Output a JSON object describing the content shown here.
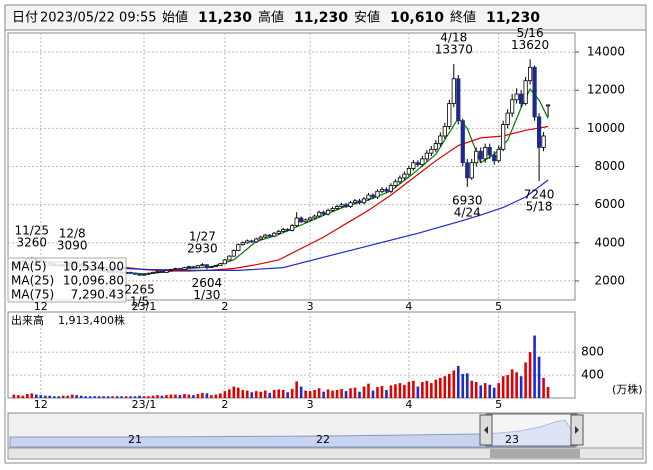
{
  "header": {
    "items": [
      {
        "label": "日付",
        "value": "2023/05/22 09:55",
        "color": "#000000"
      },
      {
        "label": "始値",
        "value": "11,230",
        "color": "#000000"
      },
      {
        "label": "高値",
        "value": "11,230",
        "color": "#e00000"
      },
      {
        "label": "安値",
        "value": "10,610",
        "color": "#008000"
      },
      {
        "label": "終値",
        "value": "11,230",
        "color": "#000000"
      }
    ]
  },
  "chart_data": {
    "type": "candlestick",
    "xlim": [
      -1.3,
      125
    ],
    "xticks": [
      {
        "value": 6,
        "label": "12"
      },
      {
        "value": 29,
        "label": "23/1"
      },
      {
        "value": 47,
        "label": "2"
      },
      {
        "value": 66,
        "label": "3"
      },
      {
        "value": 88,
        "label": "4"
      },
      {
        "value": 108,
        "label": "5"
      }
    ],
    "ylim": [
      1000,
      15000
    ],
    "yticks": [
      2000,
      4000,
      6000,
      8000,
      10000,
      12000,
      14000
    ],
    "grid": true,
    "up_color": "#ffffff",
    "down_color": "#1c2a8c",
    "open": [
      2850,
      2900,
      3000,
      3050,
      3150,
      3200,
      3100,
      3000,
      2950,
      2900,
      2850,
      2800,
      2850,
      2900,
      3000,
      2900,
      2800,
      2700,
      2650,
      2600,
      2550,
      2500,
      2450,
      2500,
      2450,
      2400,
      2450,
      2400,
      2350,
      2300,
      2350,
      2400,
      2450,
      2500,
      2450,
      2550,
      2600,
      2650,
      2600,
      2700,
      2750,
      2700,
      2800,
      2850,
      2700,
      2750,
      2800,
      2900,
      3100,
      3300,
      3600,
      3900,
      4000,
      4100,
      4050,
      4200,
      4300,
      4400,
      4350,
      4500,
      4600,
      4700,
      4650,
      4900,
      5300,
      5100,
      5200,
      5300,
      5400,
      5600,
      5500,
      5700,
      5800,
      5900,
      6000,
      5900,
      6100,
      6200,
      6100,
      6300,
      6500,
      6400,
      6700,
      6800,
      6700,
      7000,
      7200,
      7400,
      7600,
      7900,
      8200,
      8100,
      8400,
      8700,
      8900,
      9200,
      9600,
      10100,
      11300,
      12600,
      10400,
      8200,
      7400,
      8200,
      8800,
      8400,
      9000,
      8600,
      8300,
      8900,
      10200,
      10800,
      11500,
      11800,
      11300,
      12500,
      13200,
      10600,
      9000,
      11230
    ],
    "high": [
      2950,
      3040,
      3100,
      3190,
      3260,
      3230,
      3130,
      3040,
      2980,
      2930,
      2880,
      2890,
      2940,
      3090,
      3030,
      2930,
      2830,
      2740,
      2690,
      2630,
      2580,
      2530,
      2540,
      2530,
      2480,
      2490,
      2480,
      2430,
      2380,
      2390,
      2440,
      2490,
      2540,
      2530,
      2590,
      2640,
      2690,
      2680,
      2740,
      2790,
      2780,
      2840,
      2930,
      2880,
      2790,
      2840,
      2950,
      3150,
      3350,
      3650,
      3960,
      4070,
      4170,
      4160,
      4270,
      4370,
      4470,
      4460,
      4570,
      4680,
      4780,
      4770,
      4980,
      5600,
      5380,
      5280,
      5380,
      5480,
      5690,
      5680,
      5790,
      5890,
      5990,
      6100,
      6090,
      6200,
      6300,
      6300,
      6400,
      6610,
      6600,
      6810,
      6920,
      6910,
      7120,
      7330,
      7530,
      7740,
      8040,
      8350,
      8330,
      8550,
      8860,
      9070,
      9380,
      9790,
      10300,
      11500,
      13370,
      12800,
      10500,
      8400,
      8400,
      9000,
      9000,
      9200,
      9200,
      8800,
      9100,
      10400,
      11000,
      11800,
      12100,
      12000,
      12700,
      13620,
      13300,
      10800,
      9800,
      11230
    ],
    "low": [
      2820,
      2880,
      2970,
      3020,
      3120,
      3070,
      2970,
      2920,
      2870,
      2820,
      2770,
      2780,
      2830,
      2880,
      2870,
      2770,
      2670,
      2620,
      2570,
      2520,
      2470,
      2420,
      2430,
      2420,
      2370,
      2380,
      2370,
      2320,
      2265,
      2280,
      2330,
      2380,
      2430,
      2420,
      2430,
      2530,
      2580,
      2570,
      2580,
      2680,
      2670,
      2680,
      2780,
      2604,
      2680,
      2730,
      2780,
      2880,
      3070,
      3270,
      3560,
      3850,
      3950,
      3990,
      4000,
      4150,
      4250,
      4290,
      4300,
      4440,
      4540,
      4580,
      4600,
      4850,
      5040,
      5030,
      5130,
      5230,
      5330,
      5420,
      5430,
      5620,
      5720,
      5820,
      5820,
      5820,
      6020,
      6010,
      6010,
      6210,
      6300,
      6300,
      6600,
      6590,
      6600,
      6890,
      7090,
      7280,
      7480,
      7780,
      7980,
      7970,
      8260,
      8550,
      8750,
      9050,
      9450,
      9950,
      11100,
      10200,
      8000,
      6930,
      7300,
      8000,
      8200,
      8200,
      8400,
      8100,
      8200,
      8800,
      10000,
      10600,
      11300,
      11100,
      11200,
      12300,
      10400,
      7240,
      8800,
      10610
    ],
    "close": [
      2900,
      3000,
      3050,
      3150,
      3200,
      3100,
      3000,
      2950,
      2900,
      2850,
      2800,
      2850,
      2900,
      3000,
      2900,
      2800,
      2700,
      2650,
      2600,
      2550,
      2500,
      2450,
      2500,
      2450,
      2400,
      2450,
      2400,
      2350,
      2300,
      2350,
      2400,
      2450,
      2500,
      2450,
      2550,
      2600,
      2650,
      2600,
      2700,
      2750,
      2700,
      2800,
      2850,
      2700,
      2750,
      2800,
      2900,
      3100,
      3300,
      3600,
      3900,
      4000,
      4100,
      4050,
      4200,
      4300,
      4400,
      4350,
      4500,
      4600,
      4700,
      4650,
      4900,
      5300,
      5100,
      5200,
      5300,
      5400,
      5600,
      5500,
      5700,
      5800,
      5900,
      6000,
      5900,
      6100,
      6200,
      6100,
      6300,
      6500,
      6400,
      6700,
      6800,
      6700,
      7000,
      7200,
      7400,
      7600,
      7900,
      8200,
      8100,
      8400,
      8700,
      8900,
      9200,
      9600,
      10100,
      11300,
      12600,
      10400,
      8200,
      7400,
      8200,
      8800,
      8400,
      9000,
      8600,
      8300,
      8900,
      10200,
      10800,
      11500,
      11800,
      11300,
      12500,
      13200,
      10600,
      9000,
      9600,
      11230
    ],
    "moving_averages": [
      {
        "name": "MA(5)",
        "legend_value": "10,534.00",
        "color": "#008000",
        "x": [
          4,
          9,
          14,
          19,
          24,
          29,
          34,
          39,
          44,
          49,
          54,
          59,
          64,
          69,
          74,
          79,
          84,
          89,
          94,
          97,
          99,
          101,
          104,
          107,
          110,
          113,
          115,
          117,
          119
        ],
        "values": [
          3060,
          3000,
          2930,
          2640,
          2460,
          2370,
          2470,
          2650,
          2740,
          3100,
          4070,
          4430,
          4930,
          5440,
          5920,
          6240,
          6720,
          7640,
          8640,
          9780,
          10540,
          10000,
          8200,
          8640,
          9380,
          11080,
          12060,
          11480,
          10534
        ]
      },
      {
        "name": "MA(25)",
        "legend_value": "10,096.80",
        "color": "#e00000",
        "x": [
          24,
          29,
          34,
          39,
          44,
          49,
          54,
          59,
          64,
          69,
          74,
          79,
          84,
          89,
          94,
          99,
          104,
          109,
          114,
          119
        ],
        "values": [
          2730,
          2600,
          2520,
          2520,
          2570,
          2650,
          2850,
          3100,
          3700,
          4300,
          5000,
          5700,
          6500,
          7400,
          8300,
          9100,
          9500,
          9600,
          9900,
          10096.8
        ]
      },
      {
        "name": "MA(75)",
        "legend_value": "7,290.43",
        "color": "#1c2acc",
        "x": [
          0,
          10,
          20,
          30,
          40,
          50,
          60,
          70,
          80,
          90,
          99,
          104,
          109,
          114,
          119
        ],
        "values": [
          2900,
          2800,
          2700,
          2600,
          2550,
          2550,
          2700,
          3300,
          3900,
          4500,
          5100,
          5450,
          5850,
          6400,
          7290.43
        ]
      }
    ],
    "annotations": [
      {
        "date": "11/25",
        "value": 3260,
        "index": 4,
        "kind": "high"
      },
      {
        "date": "12/8",
        "value": 3090,
        "index": 13,
        "kind": "high"
      },
      {
        "date": "1/5",
        "value": 2265,
        "index": 28,
        "kind": "low"
      },
      {
        "date": "1/27",
        "value": 2930,
        "index": 42,
        "kind": "high"
      },
      {
        "date": "1/30",
        "value": 2604,
        "index": 43,
        "kind": "low"
      },
      {
        "date": "4/18",
        "value": 13370,
        "index": 98,
        "kind": "high"
      },
      {
        "date": "4/24",
        "value": 6930,
        "index": 101,
        "kind": "low"
      },
      {
        "date": "5/16",
        "value": 13620,
        "index": 115,
        "kind": "high"
      },
      {
        "date": "5/18",
        "value": 7240,
        "index": 117,
        "kind": "low"
      }
    ],
    "volume": {
      "label": "出来高",
      "text": "1,913,400株",
      "unit": "(万株)",
      "ylim": [
        0,
        1500
      ],
      "yticks": [
        400,
        800
      ],
      "up_color": "#e00000",
      "down_color": "#1c2acc",
      "values": [
        60,
        50,
        40,
        70,
        80,
        60,
        50,
        40,
        40,
        30,
        30,
        40,
        40,
        60,
        50,
        40,
        30,
        30,
        30,
        30,
        30,
        30,
        30,
        30,
        30,
        30,
        30,
        30,
        40,
        30,
        30,
        40,
        50,
        40,
        50,
        60,
        60,
        50,
        70,
        60,
        50,
        70,
        90,
        80,
        50,
        60,
        80,
        120,
        150,
        200,
        180,
        140,
        130,
        100,
        120,
        110,
        130,
        90,
        140,
        150,
        140,
        100,
        160,
        290,
        200,
        130,
        120,
        140,
        170,
        110,
        150,
        130,
        140,
        160,
        120,
        170,
        180,
        110,
        200,
        250,
        130,
        190,
        210,
        140,
        220,
        240,
        260,
        230,
        280,
        300,
        200,
        280,
        300,
        260,
        320,
        350,
        380,
        420,
        480,
        560,
        420,
        430,
        300,
        280,
        220,
        260,
        230,
        180,
        260,
        380,
        400,
        500,
        450,
        380,
        620,
        800,
        1090,
        720,
        350,
        191.34
      ]
    },
    "navigator": {
      "labels": [
        "21",
        "22",
        "23"
      ]
    }
  }
}
